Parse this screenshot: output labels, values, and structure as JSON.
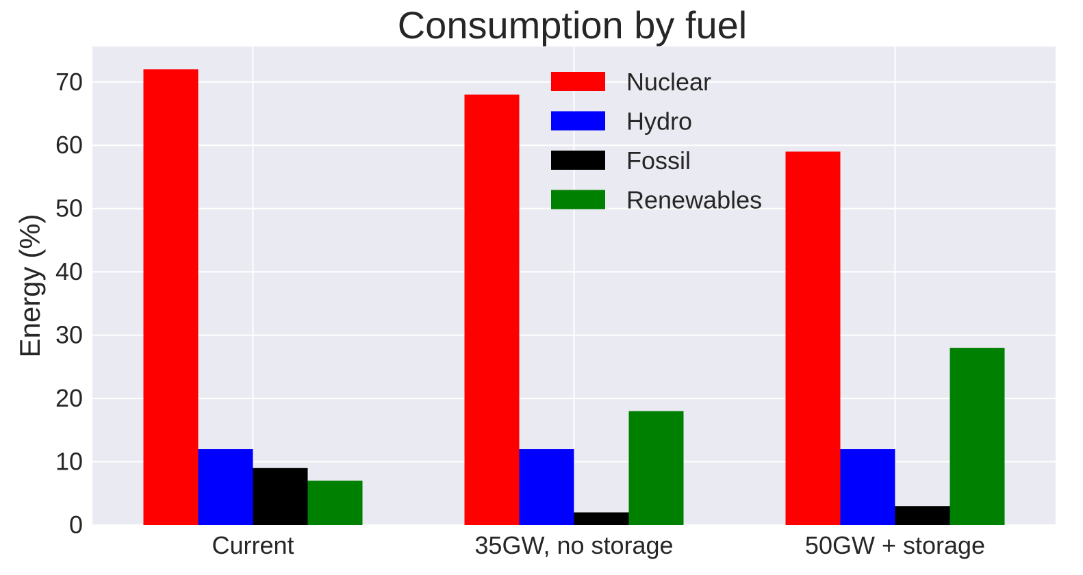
{
  "chart_data": {
    "type": "bar",
    "title": "Consumption by fuel",
    "xlabel": "",
    "ylabel": "Energy (%)",
    "categories": [
      "Current",
      "35GW, no storage",
      "50GW + storage"
    ],
    "series": [
      {
        "name": "Nuclear",
        "values": [
          72,
          68,
          59
        ],
        "color": "#ff0000"
      },
      {
        "name": "Hydro",
        "values": [
          12,
          12,
          12
        ],
        "color": "#0000ff"
      },
      {
        "name": "Fossil",
        "values": [
          9,
          2,
          3
        ],
        "color": "#000000"
      },
      {
        "name": "Renewables",
        "values": [
          7,
          18,
          28
        ],
        "color": "#008000"
      }
    ],
    "ylim": [
      0,
      75.6
    ],
    "yticks": [
      0,
      10,
      20,
      30,
      40,
      50,
      60,
      70
    ],
    "grid": true,
    "legend_position": "upper-center",
    "colors": {
      "plot_background": "#eaeaf2",
      "grid": "#ffffff",
      "text": "#262626"
    }
  }
}
